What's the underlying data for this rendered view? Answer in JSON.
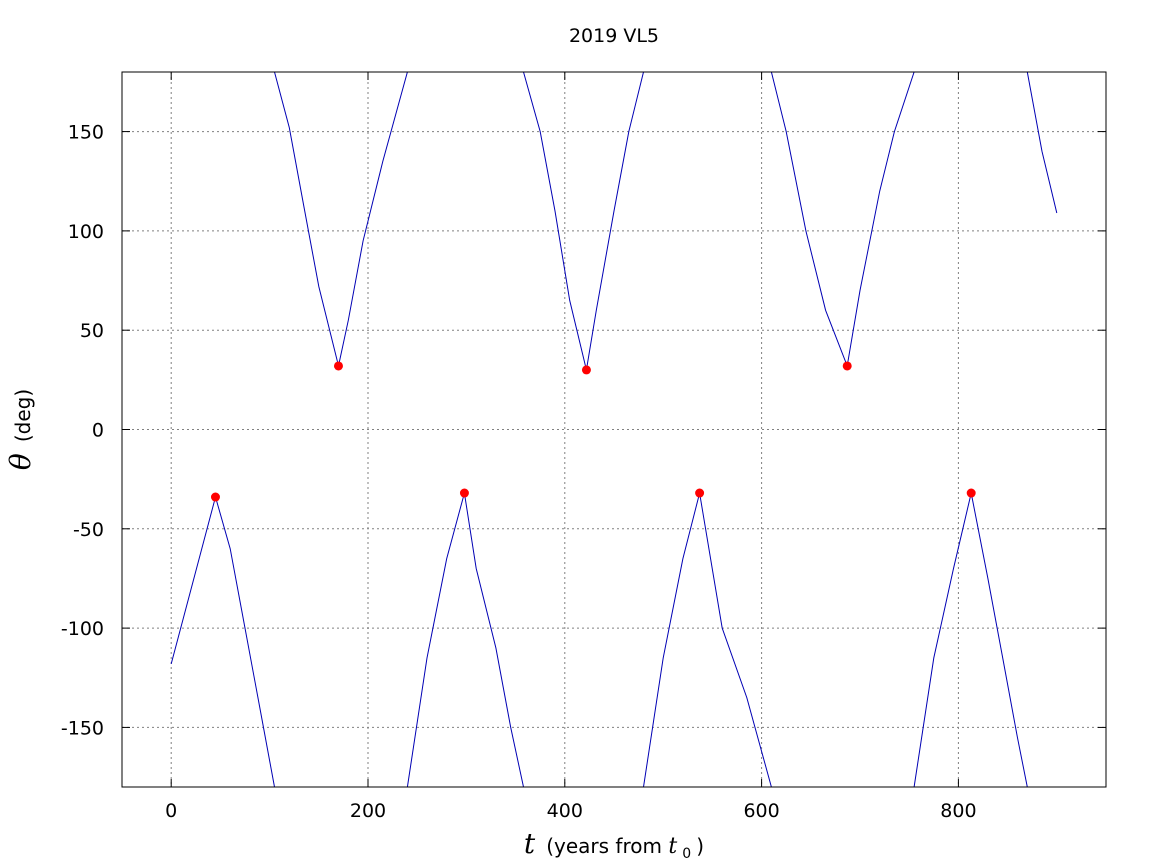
{
  "chart_data": {
    "type": "line",
    "title": "2019 VL5",
    "xlabel": {
      "variable": "t",
      "unit_text": "(years from ",
      "sub_var": "t",
      "sub_index": "0",
      "close": ")"
    },
    "ylabel": {
      "variable": "θ",
      "unit_text": "(deg)"
    },
    "xlim": [
      -50,
      950
    ],
    "ylim": [
      -180,
      180
    ],
    "xticks": [
      0,
      200,
      400,
      600,
      800
    ],
    "xtick_labels": [
      "0",
      "200",
      "400",
      "600",
      "800"
    ],
    "yticks": [
      -150,
      -100,
      -50,
      0,
      50,
      100,
      150
    ],
    "ytick_labels": [
      "-150",
      "-100",
      "-50",
      "0",
      "50",
      "100",
      "150"
    ],
    "grid": true,
    "series": [
      {
        "style": "line",
        "color": "#0000b4",
        "segments": [
          [
            [
              0,
              -118
            ],
            [
              45,
              -34
            ],
            [
              60,
              -60
            ],
            [
              75,
              -100
            ],
            [
              90,
              -140
            ],
            [
              105,
              -180
            ]
          ],
          [
            [
              105,
              180
            ],
            [
              120,
              152
            ],
            [
              135,
              112
            ],
            [
              150,
              72
            ],
            [
              170,
              32
            ],
            [
              180,
              55
            ],
            [
              195,
              95
            ],
            [
              215,
              135
            ],
            [
              240,
              180
            ]
          ],
          [
            [
              240,
              -180
            ],
            [
              260,
              -115
            ],
            [
              280,
              -65
            ],
            [
              298,
              -32
            ],
            [
              310,
              -70
            ],
            [
              330,
              -110
            ],
            [
              345,
              -150
            ],
            [
              358,
              -180
            ]
          ],
          [
            [
              358,
              180
            ],
            [
              375,
              150
            ],
            [
              390,
              110
            ],
            [
              405,
              65
            ],
            [
              422,
              30
            ],
            [
              432,
              60
            ],
            [
              450,
              110
            ],
            [
              465,
              150
            ],
            [
              480,
              180
            ]
          ],
          [
            [
              480,
              -180
            ],
            [
              500,
              -115
            ],
            [
              520,
              -65
            ],
            [
              537,
              -32
            ],
            [
              560,
              -100
            ],
            [
              585,
              -135
            ],
            [
              610,
              -180
            ]
          ],
          [
            [
              610,
              180
            ],
            [
              625,
              150
            ],
            [
              645,
              100
            ],
            [
              665,
              60
            ],
            [
              687,
              32
            ],
            [
              700,
              70
            ],
            [
              720,
              120
            ],
            [
              735,
              150
            ],
            [
              755,
              180
            ]
          ],
          [
            [
              755,
              -180
            ],
            [
              775,
              -115
            ],
            [
              795,
              -70
            ],
            [
              813,
              -32
            ],
            [
              830,
              -75
            ],
            [
              845,
              -115
            ],
            [
              860,
              -155
            ],
            [
              870,
              -180
            ]
          ],
          [
            [
              870,
              180
            ],
            [
              885,
              140
            ],
            [
              900,
              109
            ]
          ]
        ]
      },
      {
        "style": "markers",
        "color": "#ff0000",
        "points": [
          [
            45,
            -34
          ],
          [
            170,
            32
          ],
          [
            298,
            -32
          ],
          [
            422,
            30
          ],
          [
            537,
            -32
          ],
          [
            687,
            32
          ],
          [
            813,
            -32
          ]
        ]
      }
    ]
  }
}
